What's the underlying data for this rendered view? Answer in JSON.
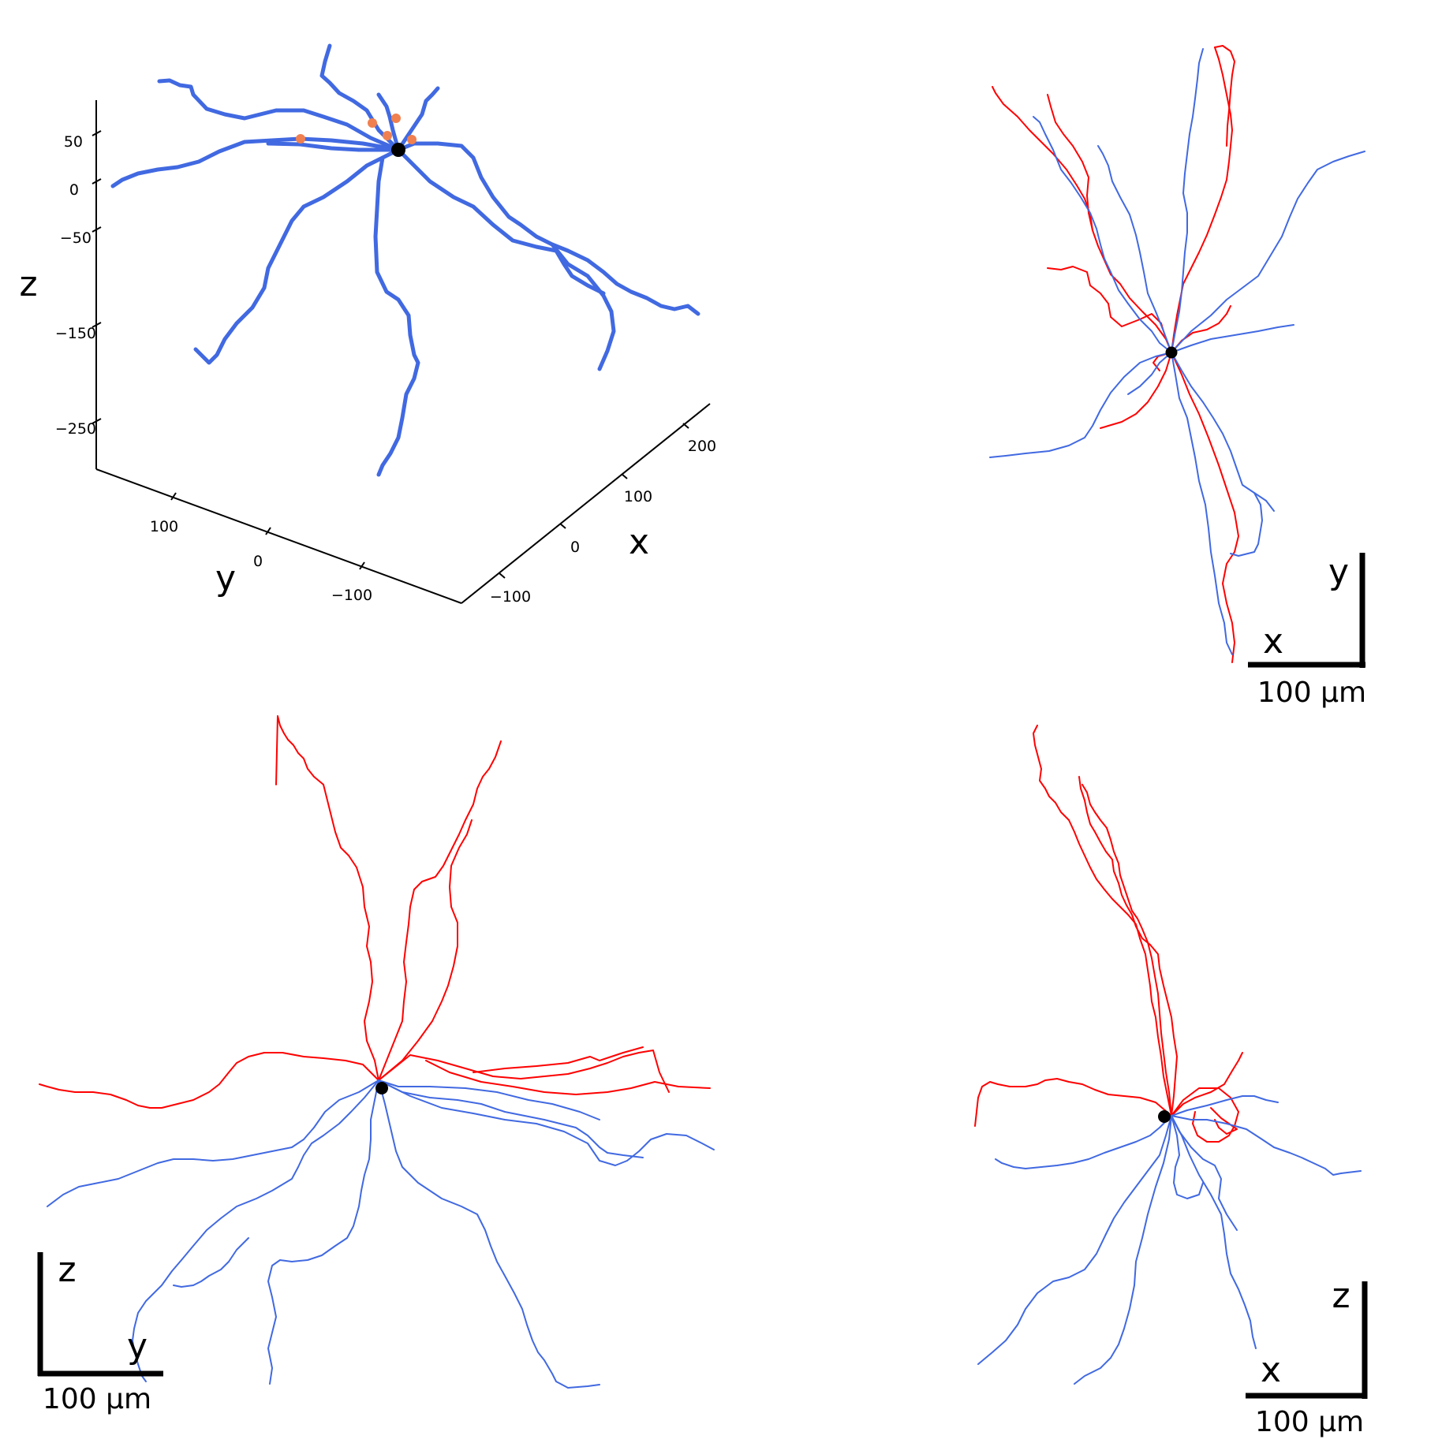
{
  "colors": {
    "basal": "#4169e1",
    "apical": "#ff0000",
    "soma": "#000000",
    "marker": "#f08050",
    "axis": "#000000"
  },
  "panel3d": {
    "z_ticks": [
      "50",
      "0",
      "−50",
      "−150",
      "−250"
    ],
    "y_ticks": [
      "100",
      "0",
      "−100"
    ],
    "x_ticks": [
      "−100",
      "0",
      "100",
      "200"
    ],
    "z_label": "z",
    "y_label": "y",
    "x_label": "x"
  },
  "panel_xy": {
    "v_axis": "y",
    "h_axis": "x",
    "scale": "100 μm"
  },
  "panel_yz": {
    "v_axis": "z",
    "h_axis": "y",
    "scale": "100 μm"
  },
  "panel_xz": {
    "v_axis": "z",
    "h_axis": "x",
    "scale": "100 μm"
  }
}
